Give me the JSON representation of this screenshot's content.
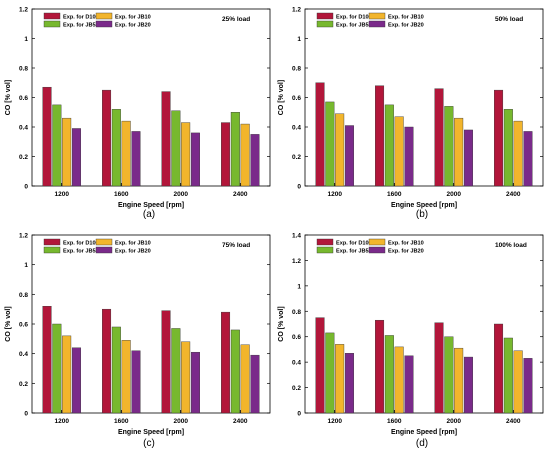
{
  "legend_labels": [
    "Exp. for D100",
    "Exp. for JB10",
    "Exp. for JB5",
    "Exp. for JB20"
  ],
  "colors": {
    "D100": "#b2163a",
    "JB5": "#77b82e",
    "JB10": "#f2b52c",
    "JB20": "#7a2a8a"
  },
  "chart_data": [
    {
      "type": "bar",
      "load_label": "25% load",
      "xlabel": "Engine Speed [rpm]",
      "ylabel": "CO [% vol]",
      "caption": "(a)",
      "categories": [
        "1200",
        "1600",
        "2000",
        "2400"
      ],
      "ylim": [
        0,
        1.2
      ],
      "yticks": [
        "0",
        "0.2",
        "0.4",
        "0.6",
        "0.8",
        "1",
        "1.2"
      ],
      "grid": false,
      "legend_position": "top-left",
      "series": [
        {
          "name": "Exp. for D100",
          "key": "D100",
          "values": [
            0.67,
            0.65,
            0.64,
            0.43
          ]
        },
        {
          "name": "Exp. for JB5",
          "key": "JB5",
          "values": [
            0.55,
            0.52,
            0.51,
            0.5
          ]
        },
        {
          "name": "Exp. for JB10",
          "key": "JB10",
          "values": [
            0.46,
            0.44,
            0.43,
            0.42
          ]
        },
        {
          "name": "Exp. for JB20",
          "key": "JB20",
          "values": [
            0.39,
            0.37,
            0.36,
            0.35
          ]
        }
      ]
    },
    {
      "type": "bar",
      "load_label": "50% load",
      "xlabel": "Engine Speed [rpm]",
      "ylabel": "CO [% vol]",
      "caption": "(b)",
      "categories": [
        "1200",
        "1600",
        "2000",
        "2400"
      ],
      "ylim": [
        0,
        1.2
      ],
      "yticks": [
        "0",
        "0.2",
        "0.4",
        "0.6",
        "0.8",
        "1",
        "1.2"
      ],
      "grid": false,
      "legend_position": "top-left",
      "series": [
        {
          "name": "Exp. for D100",
          "key": "D100",
          "values": [
            0.7,
            0.68,
            0.66,
            0.65
          ]
        },
        {
          "name": "Exp. for JB5",
          "key": "JB5",
          "values": [
            0.57,
            0.55,
            0.54,
            0.52
          ]
        },
        {
          "name": "Exp. for JB10",
          "key": "JB10",
          "values": [
            0.49,
            0.47,
            0.46,
            0.44
          ]
        },
        {
          "name": "Exp. for JB20",
          "key": "JB20",
          "values": [
            0.41,
            0.4,
            0.38,
            0.37
          ]
        }
      ]
    },
    {
      "type": "bar",
      "load_label": "75% load",
      "xlabel": "Engine Speed [rpm]",
      "ylabel": "CO [% vol]",
      "caption": "(c)",
      "categories": [
        "1200",
        "1600",
        "2000",
        "2400"
      ],
      "ylim": [
        0,
        1.2
      ],
      "yticks": [
        "0",
        "0.2",
        "0.4",
        "0.6",
        "0.8",
        "1",
        "1.2"
      ],
      "grid": false,
      "legend_position": "top-left",
      "series": [
        {
          "name": "Exp. for D100",
          "key": "D100",
          "values": [
            0.72,
            0.7,
            0.69,
            0.68
          ]
        },
        {
          "name": "Exp. for JB5",
          "key": "JB5",
          "values": [
            0.6,
            0.58,
            0.57,
            0.56
          ]
        },
        {
          "name": "Exp. for JB10",
          "key": "JB10",
          "values": [
            0.52,
            0.49,
            0.48,
            0.46
          ]
        },
        {
          "name": "Exp. for JB20",
          "key": "JB20",
          "values": [
            0.44,
            0.42,
            0.41,
            0.39
          ]
        }
      ]
    },
    {
      "type": "bar",
      "load_label": "100% load",
      "xlabel": "Engine Speed [rpm]",
      "ylabel": "CO [% vol]",
      "caption": "(d)",
      "categories": [
        "1200",
        "1600",
        "2000",
        "2400"
      ],
      "ylim": [
        0,
        1.4
      ],
      "yticks": [
        "0",
        "0.2",
        "0.4",
        "0.6",
        "0.8",
        "1",
        "1.2",
        "1.4"
      ],
      "grid": false,
      "legend_position": "top-left",
      "series": [
        {
          "name": "Exp. for D100",
          "key": "D100",
          "values": [
            0.75,
            0.73,
            0.71,
            0.7
          ]
        },
        {
          "name": "Exp. for JB5",
          "key": "JB5",
          "values": [
            0.63,
            0.61,
            0.6,
            0.59
          ]
        },
        {
          "name": "Exp. for JB10",
          "key": "JB10",
          "values": [
            0.54,
            0.52,
            0.51,
            0.49
          ]
        },
        {
          "name": "Exp. for JB20",
          "key": "JB20",
          "values": [
            0.47,
            0.45,
            0.44,
            0.43
          ]
        }
      ]
    }
  ]
}
